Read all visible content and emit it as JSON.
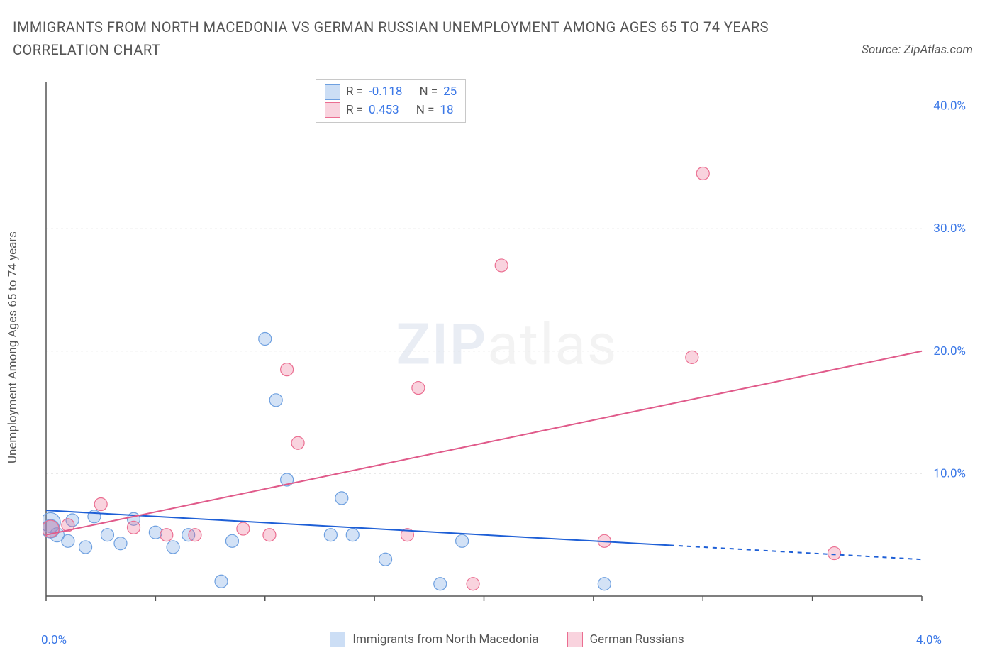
{
  "title": "IMMIGRANTS FROM NORTH MACEDONIA VS GERMAN RUSSIAN UNEMPLOYMENT AMONG AGES 65 TO 74 YEARS CORRELATION CHART",
  "source_label": "Source: ZipAtlas.com",
  "ylabel": "Unemployment Among Ages 65 to 74 years",
  "watermark": {
    "bold": "ZIP",
    "rest": "atlas"
  },
  "chart": {
    "type": "scatter",
    "xlim": [
      0.0,
      4.0
    ],
    "ylim": [
      0.0,
      42.0
    ],
    "xticks": [
      0.0,
      0.5,
      1.0,
      1.5,
      2.0,
      2.5,
      3.0,
      3.5,
      4.0
    ],
    "xtick_labels": {
      "0": "0.0%",
      "8": "4.0%"
    },
    "yticks": [
      10.0,
      20.0,
      30.0,
      40.0
    ],
    "ytick_labels": [
      "10.0%",
      "20.0%",
      "30.0%",
      "40.0%"
    ],
    "grid_color": "#e6e6e6",
    "axis_color": "#555555",
    "background": "#ffffff",
    "ylabel_color": "#555555",
    "ytick_color": "#3b78e7",
    "series": [
      {
        "name": "Immigrants from North Macedonia",
        "color": "#6ea0e0",
        "fill": "rgba(110,160,225,0.30)",
        "marker_r_default": 9,
        "points": [
          {
            "x": 0.02,
            "y": 6.0,
            "r": 14
          },
          {
            "x": 0.02,
            "y": 5.5,
            "r": 13
          },
          {
            "x": 0.05,
            "y": 5.0,
            "r": 10
          },
          {
            "x": 0.1,
            "y": 4.5,
            "r": 9
          },
          {
            "x": 0.12,
            "y": 6.2,
            "r": 9
          },
          {
            "x": 0.18,
            "y": 4.0,
            "r": 9
          },
          {
            "x": 0.22,
            "y": 6.5,
            "r": 9
          },
          {
            "x": 0.28,
            "y": 5.0,
            "r": 9
          },
          {
            "x": 0.34,
            "y": 4.3,
            "r": 9
          },
          {
            "x": 0.4,
            "y": 6.3,
            "r": 9
          },
          {
            "x": 0.5,
            "y": 5.2,
            "r": 9
          },
          {
            "x": 0.58,
            "y": 4.0,
            "r": 9
          },
          {
            "x": 0.65,
            "y": 5.0,
            "r": 9
          },
          {
            "x": 0.8,
            "y": 1.2,
            "r": 9
          },
          {
            "x": 0.85,
            "y": 4.5,
            "r": 9
          },
          {
            "x": 1.0,
            "y": 21.0,
            "r": 9
          },
          {
            "x": 1.05,
            "y": 16.0,
            "r": 9
          },
          {
            "x": 1.1,
            "y": 9.5,
            "r": 9
          },
          {
            "x": 1.3,
            "y": 5.0,
            "r": 9
          },
          {
            "x": 1.35,
            "y": 8.0,
            "r": 9
          },
          {
            "x": 1.4,
            "y": 5.0,
            "r": 9
          },
          {
            "x": 1.55,
            "y": 3.0,
            "r": 9
          },
          {
            "x": 1.8,
            "y": 1.0,
            "r": 9
          },
          {
            "x": 1.9,
            "y": 4.5,
            "r": 9
          },
          {
            "x": 2.55,
            "y": 1.0,
            "r": 9
          }
        ],
        "trend": {
          "x0": 0.0,
          "y0": 7.0,
          "x1": 4.0,
          "y1": 3.0,
          "solid_to_x": 2.85,
          "line_color": "#1e5fd6",
          "width": 2
        },
        "stats": {
          "R": "-0.118",
          "N": "25"
        }
      },
      {
        "name": "German Russians",
        "color": "#eb6e91",
        "fill": "rgba(235,110,145,0.30)",
        "marker_r_default": 9,
        "points": [
          {
            "x": 0.02,
            "y": 5.5,
            "r": 12
          },
          {
            "x": 0.1,
            "y": 5.8,
            "r": 9
          },
          {
            "x": 0.25,
            "y": 7.5,
            "r": 9
          },
          {
            "x": 0.4,
            "y": 5.6,
            "r": 9
          },
          {
            "x": 0.55,
            "y": 5.0,
            "r": 9
          },
          {
            "x": 0.68,
            "y": 5.0,
            "r": 9
          },
          {
            "x": 0.9,
            "y": 5.5,
            "r": 9
          },
          {
            "x": 1.02,
            "y": 5.0,
            "r": 9
          },
          {
            "x": 1.1,
            "y": 18.5,
            "r": 9
          },
          {
            "x": 1.15,
            "y": 12.5,
            "r": 9
          },
          {
            "x": 1.65,
            "y": 5.0,
            "r": 9
          },
          {
            "x": 1.7,
            "y": 17.0,
            "r": 9
          },
          {
            "x": 1.95,
            "y": 1.0,
            "r": 9
          },
          {
            "x": 2.08,
            "y": 27.0,
            "r": 9
          },
          {
            "x": 2.55,
            "y": 4.5,
            "r": 9
          },
          {
            "x": 2.95,
            "y": 19.5,
            "r": 9
          },
          {
            "x": 3.0,
            "y": 34.5,
            "r": 9
          },
          {
            "x": 3.6,
            "y": 3.5,
            "r": 9
          }
        ],
        "trend": {
          "x0": 0.0,
          "y0": 5.0,
          "x1": 4.0,
          "y1": 20.0,
          "solid_to_x": 4.0,
          "line_color": "#e05a8a",
          "width": 2
        },
        "stats": {
          "R": "0.453",
          "N": "18"
        }
      }
    ]
  },
  "stats_box": {
    "rows": [
      {
        "swatch": "blue",
        "r_label": "R =",
        "r_val": "-0.118",
        "n_label": "N =",
        "n_val": "25"
      },
      {
        "swatch": "pink",
        "r_label": "R =",
        "r_val": "0.453",
        "n_label": "N =",
        "n_val": "18"
      }
    ]
  },
  "legend": {
    "items": [
      {
        "swatch": "blue",
        "label": "Immigrants from North Macedonia"
      },
      {
        "swatch": "pink",
        "label": "German Russians"
      }
    ]
  }
}
